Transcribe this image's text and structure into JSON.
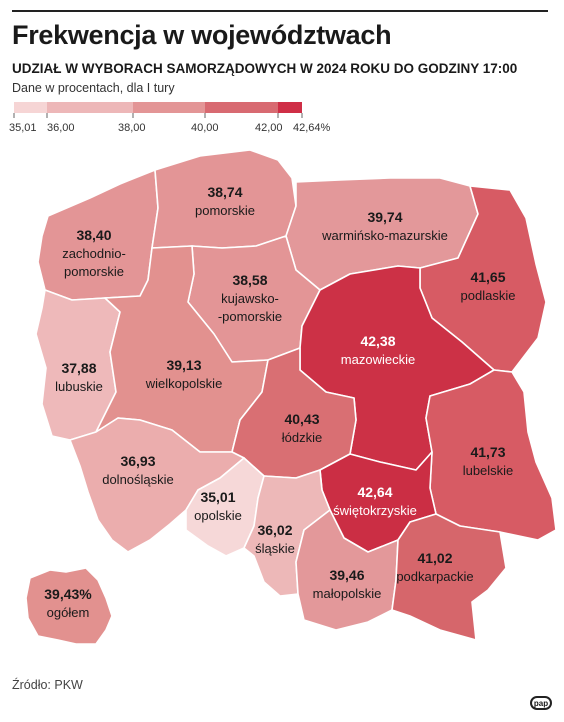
{
  "title": "Frekwencja w województwach",
  "subtitle": "UDZIAŁ W WYBORACH SAMORZĄDOWYCH W 2024 ROKU DO GODZINY 17:00",
  "note": "Dane w procentach, dla I tury",
  "source": "Źródło: PKW",
  "logo": "pap",
  "legend": {
    "ticks": [
      "35,01",
      "36,00",
      "38,00",
      "40,00",
      "42,00",
      "42,64%"
    ],
    "colors": [
      "#f6d5d5",
      "#edb7b8",
      "#e39596",
      "#d86a71",
      "#cf2e46"
    ]
  },
  "regions": {
    "pomorskie": {
      "value": "38,74",
      "name": "pomorskie"
    },
    "warminsko": {
      "value": "39,74",
      "name": "warmińsko-mazurskie"
    },
    "zachodnio": {
      "value": "38,40",
      "name_1": "zachodnio-",
      "name_2": "pomorskie"
    },
    "podlaskie": {
      "value": "41,65",
      "name": "podlaskie"
    },
    "kujawsko": {
      "value": "38,58",
      "name_1": "kujawsko-",
      "name_2": "-pomorskie"
    },
    "mazowieckie": {
      "value": "42,38",
      "name": "mazowieckie"
    },
    "lubuskie": {
      "value": "37,88",
      "name": "lubuskie"
    },
    "wielkopolskie": {
      "value": "39,13",
      "name": "wielkopolskie"
    },
    "lodzkie": {
      "value": "40,43",
      "name": "łódzkie"
    },
    "lubelskie": {
      "value": "41,73",
      "name": "lubelskie"
    },
    "dolnoslaskie": {
      "value": "36,93",
      "name": "dolnośląskie"
    },
    "swietokrzyskie": {
      "value": "42,64",
      "name": "świętokrzyskie"
    },
    "opolskie": {
      "value": "35,01",
      "name": "opolskie"
    },
    "slaskie": {
      "value": "36,02",
      "name": "śląskie"
    },
    "podkarpackie": {
      "value": "41,02",
      "name": "podkarpackie"
    },
    "malopolskie": {
      "value": "39,46",
      "name": "małopolskie"
    }
  },
  "overall": {
    "value": "39,43%",
    "name": "ogółem"
  }
}
